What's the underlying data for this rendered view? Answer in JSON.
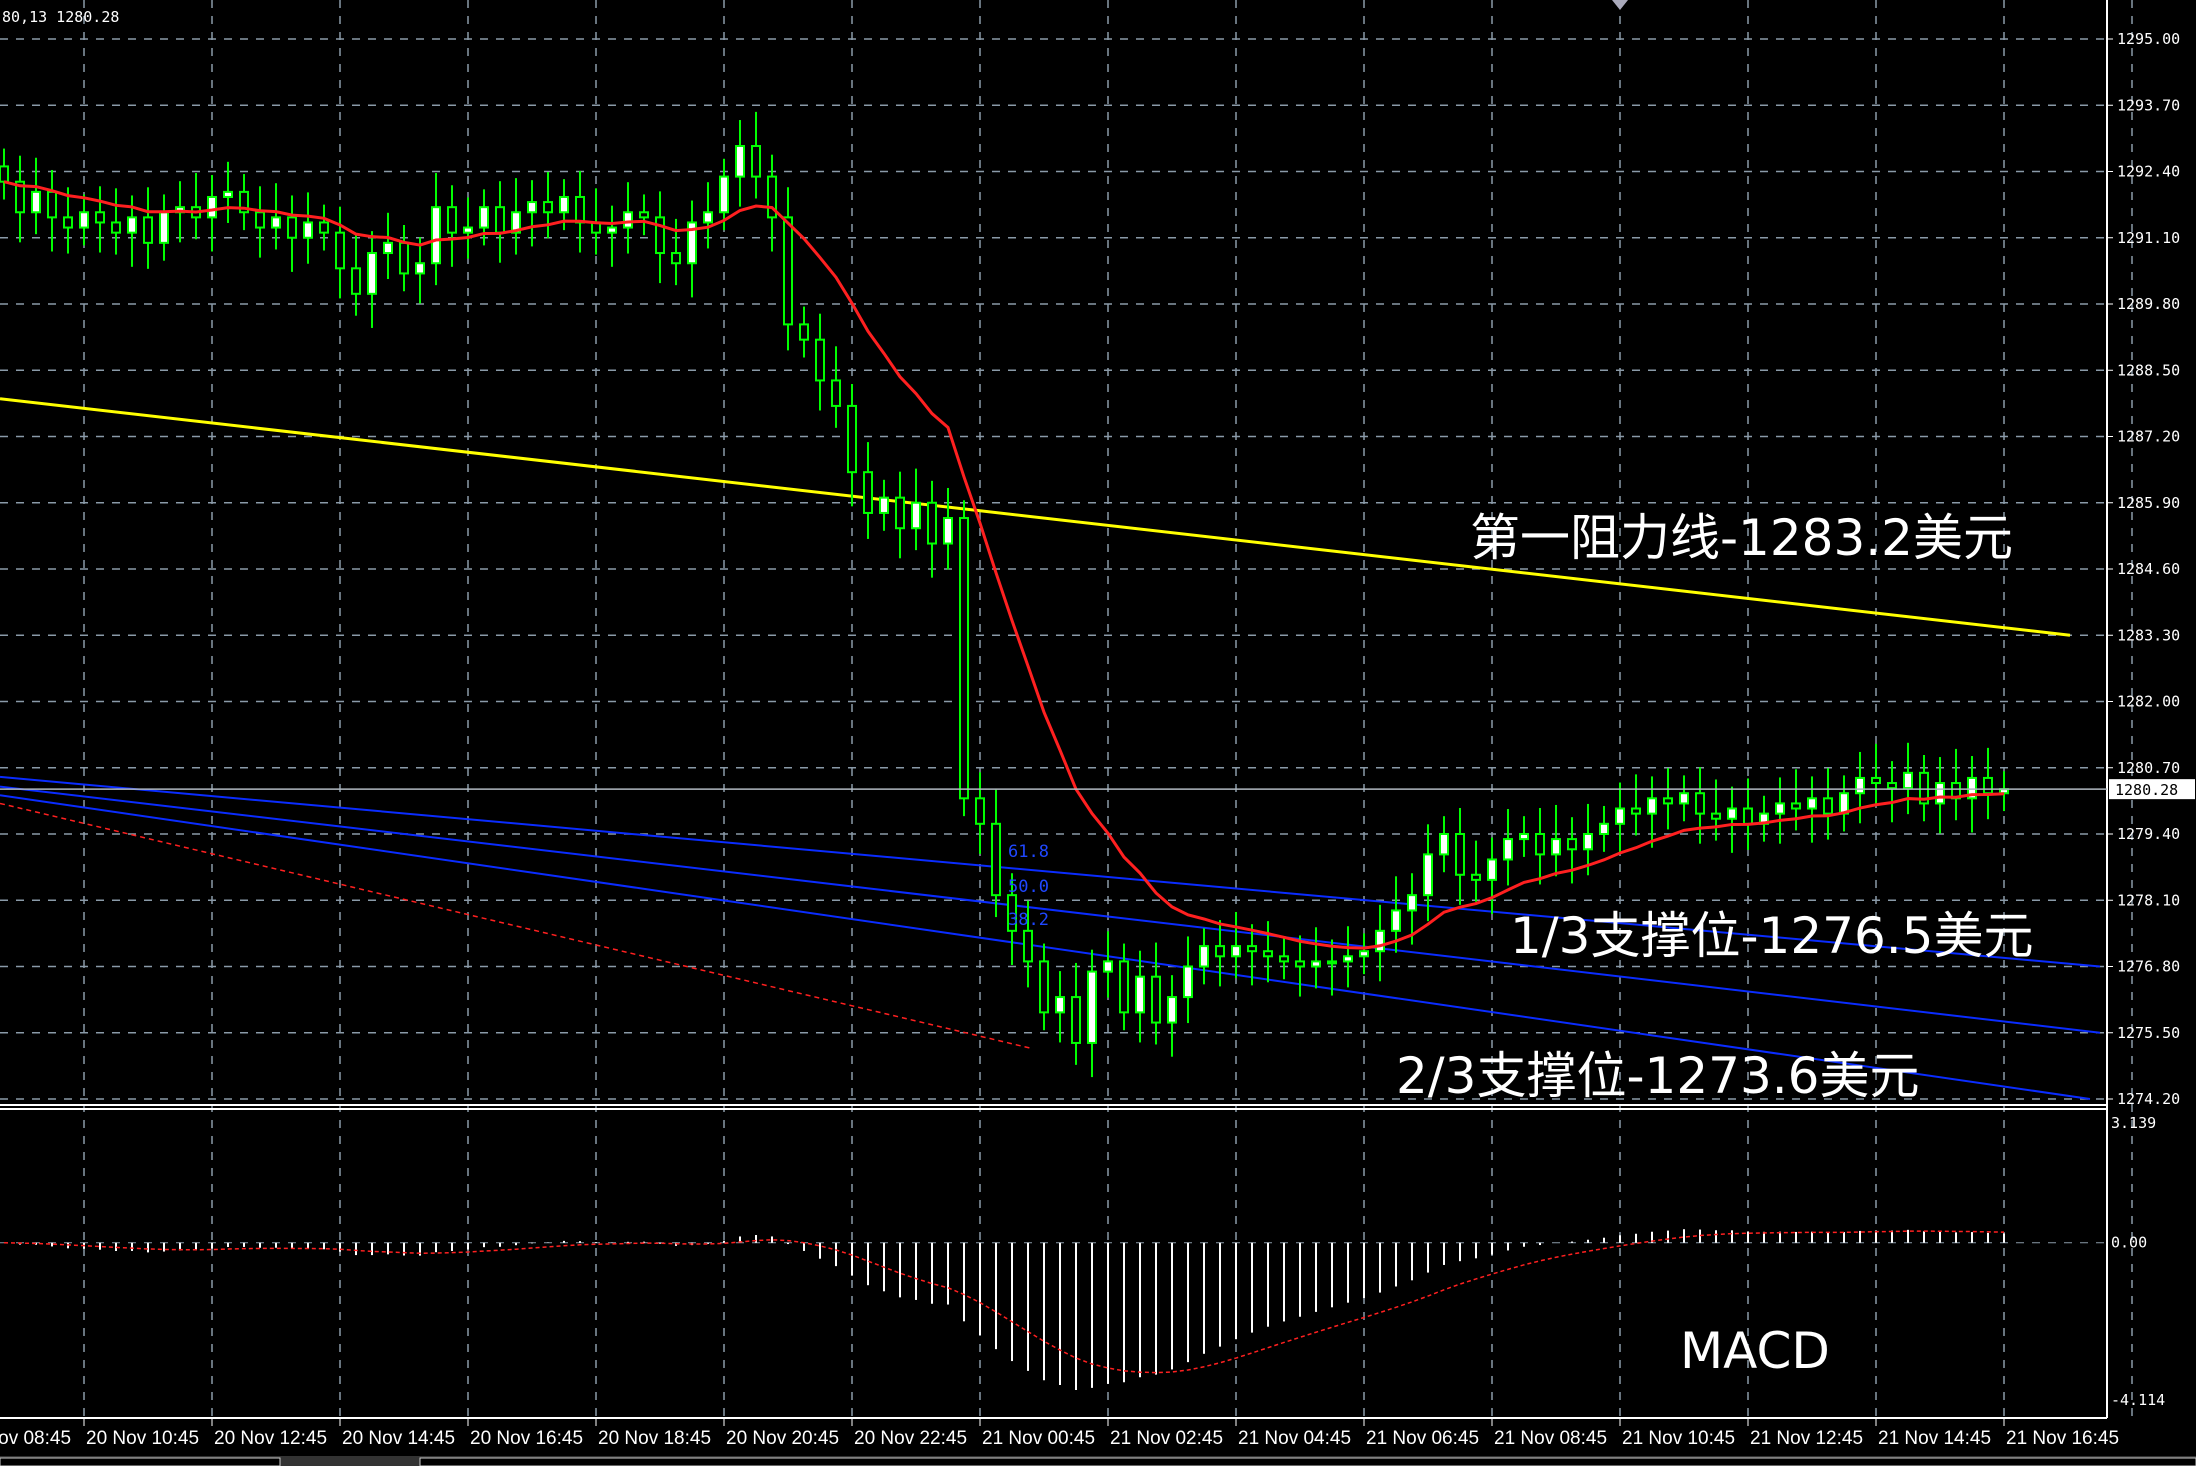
{
  "header": {
    "info_text": "80,13 1280.28"
  },
  "current_price_label": "1280.28",
  "annotations": {
    "resistance": "第一阻力线-1283.2美元",
    "support_1_3": "1/3支撑位-1276.5美元",
    "support_2_3": "2/3支撑位-1273.6美元",
    "macd": "MACD"
  },
  "fib_labels": [
    "61.8",
    "50.0",
    "38.2"
  ],
  "colors": {
    "background": "#000000",
    "candle": "#00ff00",
    "bull_body": "#ffffff",
    "ma": "#ff2020",
    "resistance": "#ffff00",
    "support": "#0a2cff",
    "grid": "#8a9aa8",
    "macd_hist": "#ffffff",
    "macd_signal": "#ff2020"
  },
  "chart_data": [
    {
      "type": "candlestick",
      "price_ticks": [
        "1295.00",
        "1293.70",
        "1292.40",
        "1291.10",
        "1289.80",
        "1288.50",
        "1287.20",
        "1285.90",
        "1284.60",
        "1283.30",
        "1282.00",
        "1280.70",
        "1279.40",
        "1278.10",
        "1276.80",
        "1275.50",
        "1274.20"
      ],
      "ylim": [
        1274.2,
        1295.0
      ],
      "time_ticks": [
        "20 Nov 08:45",
        "20 Nov 10:45",
        "20 Nov 12:45",
        "20 Nov 14:45",
        "20 Nov 16:45",
        "20 Nov 18:45",
        "20 Nov 20:45",
        "20 Nov 22:45",
        "21 Nov 00:45",
        "21 Nov 02:45",
        "21 Nov 04:45",
        "21 Nov 06:45",
        "21 Nov 08:45",
        "21 Nov 10:45",
        "21 Nov 12:45",
        "21 Nov 14:45",
        "21 Nov 16:45"
      ],
      "bar_interval": "15 min",
      "grid": true,
      "close": [
        1292.2,
        1291.6,
        1292.0,
        1291.5,
        1291.3,
        1291.6,
        1291.4,
        1291.2,
        1291.5,
        1291.0,
        1291.6,
        1291.7,
        1291.5,
        1291.9,
        1292.0,
        1291.6,
        1291.3,
        1291.5,
        1291.1,
        1291.4,
        1291.2,
        1290.5,
        1290.0,
        1290.8,
        1291.0,
        1290.4,
        1290.6,
        1291.7,
        1291.2,
        1291.3,
        1291.7,
        1291.2,
        1291.6,
        1291.8,
        1291.6,
        1291.9,
        1291.4,
        1291.2,
        1291.3,
        1291.6,
        1291.5,
        1290.8,
        1290.6,
        1291.4,
        1291.6,
        1292.3,
        1292.9,
        1292.3,
        1291.5,
        1289.4,
        1289.1,
        1288.3,
        1287.8,
        1286.5,
        1285.7,
        1286.0,
        1285.4,
        1285.9,
        1285.1,
        1285.6,
        1280.1,
        1279.6,
        1278.2,
        1277.5,
        1276.9,
        1275.9,
        1276.2,
        1275.3,
        1276.7,
        1276.9,
        1275.9,
        1276.6,
        1275.7,
        1276.2,
        1276.8,
        1277.2,
        1277.0,
        1277.2,
        1277.1,
        1277.0,
        1276.9,
        1276.8,
        1276.9,
        1276.9,
        1277.0,
        1277.1,
        1277.5,
        1277.9,
        1278.2,
        1279.0,
        1279.4,
        1278.6,
        1278.5,
        1278.9,
        1279.3,
        1279.4,
        1279.0,
        1279.3,
        1279.1,
        1279.4,
        1279.6,
        1279.9,
        1279.8,
        1280.1,
        1280.0,
        1280.2,
        1279.8,
        1279.7,
        1279.9,
        1279.6,
        1279.8,
        1280.0,
        1279.9,
        1280.1,
        1279.8,
        1280.2,
        1280.5,
        1280.4,
        1280.3,
        1280.6,
        1280.0,
        1280.4,
        1280.1,
        1280.5,
        1280.2,
        1280.28
      ],
      "lines": {
        "resistance": {
          "start": 1287.94,
          "end": 1283.3
        },
        "support_upper": {
          "start": 1280.52,
          "end": 1276.8
        },
        "support_mid": {
          "start": 1280.33,
          "end": 1275.5
        },
        "support_lower": {
          "start": 1280.16,
          "end": 1274.2
        },
        "red_dashed": {
          "start": 1280.0,
          "end": 1275.2
        }
      }
    },
    {
      "type": "bar",
      "name": "MACD",
      "ticks": [
        "3.139",
        "0.00",
        "-4.114"
      ],
      "ylim": [
        -4.114,
        3.139
      ]
    }
  ]
}
